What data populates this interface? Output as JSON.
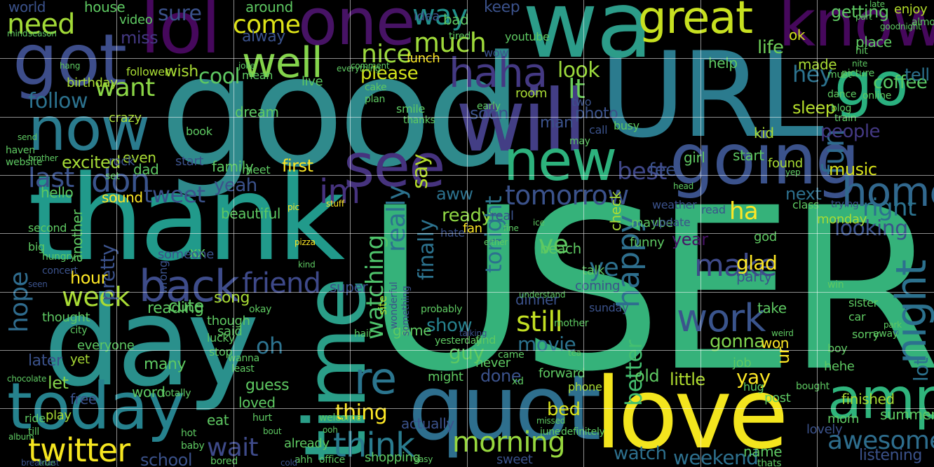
{
  "palette": {
    "purple": "#46085c",
    "indigo": "#3b528b",
    "blue": "#31688e",
    "teal": "#21918c",
    "teal_green": "#1fa187",
    "green": "#35b779",
    "lime": "#90d743",
    "yellow": "#fde725"
  },
  "words": [
    "USER",
    "good",
    "URL",
    "wa",
    "thank",
    "love",
    "day",
    "quot",
    "time",
    "will",
    "lol",
    "got",
    "know",
    "one",
    "today",
    "going",
    "amp",
    "now",
    "see",
    "new",
    "great",
    "go",
    "haha",
    "well",
    "back",
    "im",
    "home",
    "work",
    "night",
    "make",
    "twitter",
    "think",
    "re",
    "don",
    "much",
    "way",
    "need",
    "come",
    "lt",
    "last",
    "tomorrow",
    "morning",
    "watching",
    "friend",
    "week",
    "fun",
    "happy",
    "still",
    "nice",
    "want",
    "follow",
    "sure",
    "cool",
    "looking",
    "right",
    "tweet",
    "wait",
    "awesome",
    "hope",
    "movie",
    "best",
    "people",
    "show",
    "pretty",
    "ha",
    "oh",
    "please",
    "first",
    "yay",
    "sleep",
    "school",
    "weekend",
    "better",
    "look",
    "thing",
    "bed",
    "little",
    "glad",
    "gonna",
    "hey",
    "made",
    "music",
    "ready",
    "tonight",
    "life",
    "coffee",
    "world",
    "miss",
    "excited",
    "hello",
    "sound",
    "hour",
    "let",
    "later",
    "ye",
    "watch",
    "next",
    "feel",
    "yeah",
    "say",
    "getting",
    "enjoy",
    "ok",
    "tell",
    "fan",
    "ve",
    "aww",
    "help",
    "place",
    "even",
    "really",
    "finally",
    "said",
    "game",
    "song",
    "cute",
    "another",
    "house",
    "lunch",
    "soon",
    "bad",
    "keep",
    "around",
    "alway",
    "wish",
    "guy",
    "lot",
    "everyone",
    "yet",
    "many",
    "eat",
    "word",
    "free",
    "dinner",
    "old",
    "kid",
    "beautiful",
    "party",
    "year",
    "girl",
    "start",
    "found",
    "post",
    "finished",
    "summer",
    "lovely",
    "mom",
    "name",
    "listening",
    "won",
    "take",
    "ur",
    "xx",
    "though",
    "thought",
    "play",
    "guess",
    "loved",
    "done",
    "might",
    "check",
    "beach",
    "maybe",
    "monday",
    "god",
    "funny",
    "coming",
    "talk",
    "hair",
    "already",
    "shopping",
    "sweet",
    "actually",
    "never",
    "forward",
    "phone",
    "room",
    "crazy",
    "birthday",
    "follower",
    "video",
    "idea",
    "tired",
    "wow",
    "youtube",
    "family",
    "dad",
    "start",
    "rock",
    "dream",
    "live",
    "mean",
    "book",
    "someone",
    "reading",
    "hate",
    "real",
    "class",
    "trying",
    "weather",
    "read",
    "update",
    "photo",
    "busy",
    "call",
    "two",
    "man",
    "may",
    "big",
    "second",
    "sunday",
    "job",
    "hehe",
    "boy",
    "sorry",
    "away",
    "car",
    "sister",
    "win",
    "find",
    "came",
    "okay",
    "lucky",
    "stop",
    "least",
    "wanna",
    "totally",
    "hug",
    "bought",
    "thats",
    "office",
    "welcome",
    "ahh",
    "baby",
    "till",
    "ride",
    "bored",
    "true",
    "breakfast",
    "album",
    "bout",
    "cold",
    "site",
    "wonderful",
    "something",
    "probably",
    "yesterday",
    "talking",
    "super",
    "stuff",
    "pic",
    "pizza",
    "hungry",
    "concert",
    "seen",
    "city",
    "chocolate",
    "meet",
    "set",
    "brother",
    "haven",
    "website",
    "send",
    "mind",
    "season",
    "hang",
    "everything",
    "xd",
    "thanks",
    "smile",
    "early",
    "picture",
    "almost",
    "goodnight",
    "nite",
    "online",
    "dance",
    "train",
    "blog",
    "must",
    "hit",
    "late",
    "part",
    "comment",
    "joke",
    "cake",
    "plan",
    "kind",
    "head",
    "yep",
    "either",
    "fine",
    "ice",
    "missed",
    "ooh",
    "easy",
    "june",
    "definitely",
    "tea",
    "hot",
    "hurt",
    "wrong",
    "weird",
    "mother",
    "understand",
    "park",
    "special",
    "sick"
  ]
}
